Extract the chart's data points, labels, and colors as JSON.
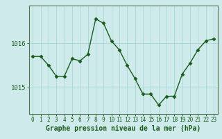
{
  "x": [
    0,
    1,
    2,
    3,
    4,
    5,
    6,
    7,
    8,
    9,
    10,
    11,
    12,
    13,
    14,
    15,
    16,
    17,
    18,
    19,
    20,
    21,
    22,
    23
  ],
  "y": [
    1015.7,
    1015.7,
    1015.5,
    1015.25,
    1015.25,
    1015.65,
    1015.6,
    1015.75,
    1016.55,
    1016.45,
    1016.05,
    1015.85,
    1015.5,
    1015.2,
    1014.85,
    1014.85,
    1014.6,
    1014.8,
    1014.8,
    1015.3,
    1015.55,
    1015.85,
    1016.05,
    1016.1
  ],
  "line_color": "#1a5c1a",
  "marker": "D",
  "marker_size": 2.5,
  "line_width": 1.0,
  "bg_color": "#ceeaea",
  "grid_color": "#a8d8d8",
  "xlabel": "Graphe pression niveau de la mer (hPa)",
  "xlabel_fontsize": 7,
  "yticks": [
    1015,
    1016
  ],
  "ylim": [
    1014.4,
    1016.85
  ],
  "xlim": [
    -0.5,
    23.5
  ],
  "xtick_fontsize": 5.5,
  "ytick_fontsize": 6.5,
  "tick_color": "#1a5c1a",
  "axis_color": "#557755"
}
